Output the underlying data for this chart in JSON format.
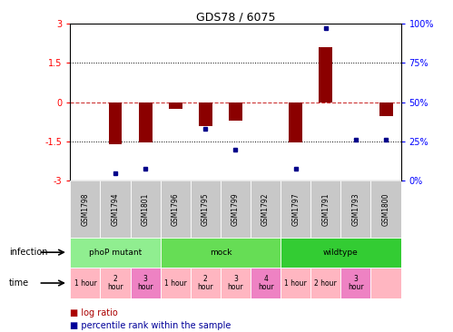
{
  "title": "GDS78 / 6075",
  "samples": [
    "GSM1798",
    "GSM1794",
    "GSM1801",
    "GSM1796",
    "GSM1795",
    "GSM1799",
    "GSM1792",
    "GSM1797",
    "GSM1791",
    "GSM1793",
    "GSM1800"
  ],
  "log_ratios": [
    0.0,
    -1.6,
    -1.55,
    -0.25,
    -0.9,
    -0.7,
    0.0,
    -1.55,
    2.1,
    0.0,
    -0.55
  ],
  "percentile_ranks": [
    null,
    5,
    8,
    null,
    33,
    20,
    null,
    8,
    97,
    26,
    26
  ],
  "infection_groups": [
    {
      "label": "phoP mutant",
      "start": 0,
      "end": 3,
      "color": "#90EE90"
    },
    {
      "label": "mock",
      "start": 3,
      "end": 7,
      "color": "#66DD55"
    },
    {
      "label": "wildtype",
      "start": 7,
      "end": 11,
      "color": "#33CC33"
    }
  ],
  "time_labels_11": [
    [
      "1 hour",
      "#FFB6C1"
    ],
    [
      "2\nhour",
      "#FFB6C1"
    ],
    [
      "3\nhour",
      "#EE82C3"
    ],
    [
      "1 hour",
      "#FFB6C1"
    ],
    [
      "2\nhour",
      "#FFB6C1"
    ],
    [
      "3\nhour",
      "#FFB6C1"
    ],
    [
      "4\nhour",
      "#EE82C3"
    ],
    [
      "1 hour",
      "#FFB6C1"
    ],
    [
      "2 hour",
      "#FFB6C1"
    ],
    [
      "3\nhour",
      "#EE82C3"
    ],
    [
      "",
      "#FFB6C1"
    ]
  ],
  "ylim_left": [
    -3,
    3
  ],
  "yticks_left": [
    -3,
    -1.5,
    0,
    1.5,
    3
  ],
  "ytick_labels_left": [
    "-3",
    "-1.5",
    "0",
    "1.5",
    "3"
  ],
  "ytick_labels_right": [
    "0%",
    "25%",
    "50%",
    "75%",
    "100%"
  ],
  "bar_color": "#8B0000",
  "dot_color": "#00008B",
  "hline_color": "#CC3333",
  "sample_bg": "#C8C8C8",
  "legend_bar_color": "#AA0000",
  "legend_dot_color": "#000099"
}
